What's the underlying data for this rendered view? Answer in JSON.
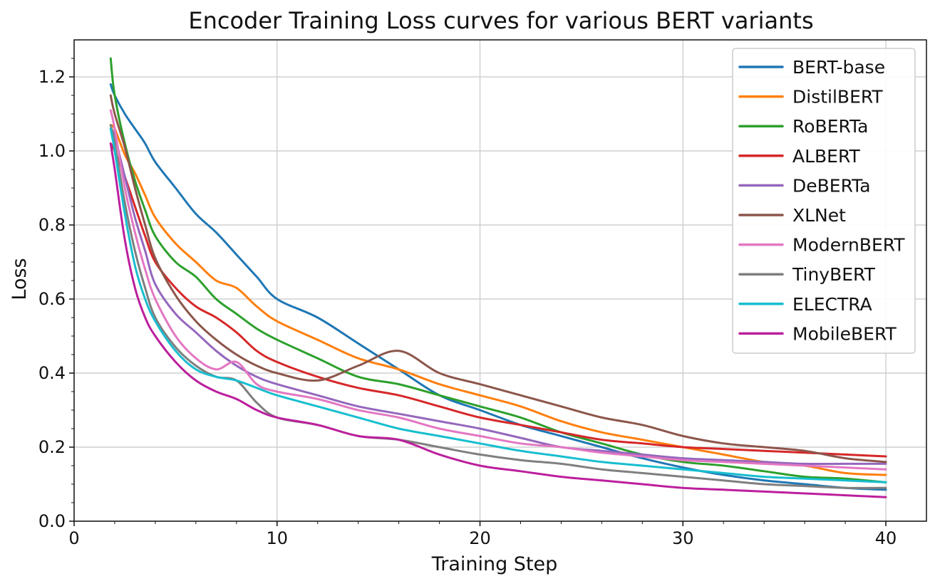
{
  "chart_data": {
    "type": "line",
    "title": "Encoder Training Loss curves for various BERT variants",
    "xlabel": "Training Step",
    "ylabel": "Loss",
    "xlim": [
      0,
      42
    ],
    "ylim": [
      0,
      1.3
    ],
    "xticks": [
      0,
      10,
      20,
      30,
      40
    ],
    "yticks": [
      0.0,
      0.2,
      0.4,
      0.6,
      0.8,
      1.0,
      1.2
    ],
    "xtick_labels": [
      "0",
      "10",
      "20",
      "30",
      "40"
    ],
    "ytick_labels": [
      "0.0",
      "0.2",
      "0.4",
      "0.6",
      "0.8",
      "1.0",
      "1.2"
    ],
    "grid": true,
    "legend_position": "top-right",
    "x": [
      1.8,
      2,
      2.5,
      3,
      3.5,
      4,
      5,
      6,
      7,
      8,
      9,
      10,
      12,
      14,
      16,
      18,
      20,
      22,
      24,
      26,
      28,
      30,
      32,
      34,
      36,
      38,
      40
    ],
    "series": [
      {
        "name": "BERT-base",
        "color": "#1f77b4",
        "values": [
          1.18,
          1.15,
          1.1,
          1.06,
          1.02,
          0.97,
          0.9,
          0.83,
          0.78,
          0.72,
          0.66,
          0.6,
          0.55,
          0.48,
          0.41,
          0.34,
          0.3,
          0.26,
          0.23,
          0.2,
          0.17,
          0.145,
          0.125,
          0.11,
          0.1,
          0.09,
          0.085
        ]
      },
      {
        "name": "DistilBERT",
        "color": "#ff7f0e",
        "values": [
          1.07,
          1.06,
          0.99,
          0.94,
          0.88,
          0.82,
          0.75,
          0.7,
          0.65,
          0.63,
          0.58,
          0.54,
          0.49,
          0.44,
          0.41,
          0.37,
          0.34,
          0.31,
          0.27,
          0.24,
          0.22,
          0.2,
          0.18,
          0.16,
          0.15,
          0.13,
          0.125
        ]
      },
      {
        "name": "RoBERTa",
        "color": "#2ca02c",
        "values": [
          1.25,
          1.15,
          1.02,
          0.92,
          0.84,
          0.77,
          0.7,
          0.66,
          0.6,
          0.56,
          0.52,
          0.49,
          0.44,
          0.39,
          0.37,
          0.34,
          0.31,
          0.28,
          0.24,
          0.21,
          0.18,
          0.16,
          0.15,
          0.135,
          0.12,
          0.115,
          0.105
        ]
      },
      {
        "name": "ALBERT",
        "color": "#d62728",
        "values": [
          1.02,
          1.0,
          0.93,
          0.85,
          0.77,
          0.7,
          0.63,
          0.58,
          0.55,
          0.51,
          0.46,
          0.43,
          0.39,
          0.36,
          0.34,
          0.31,
          0.28,
          0.26,
          0.24,
          0.22,
          0.21,
          0.2,
          0.195,
          0.19,
          0.185,
          0.18,
          0.175
        ]
      },
      {
        "name": "DeBERTa",
        "color": "#9467bd",
        "values": [
          1.06,
          1.04,
          0.93,
          0.82,
          0.73,
          0.64,
          0.56,
          0.51,
          0.46,
          0.42,
          0.39,
          0.37,
          0.34,
          0.31,
          0.29,
          0.27,
          0.25,
          0.225,
          0.2,
          0.19,
          0.18,
          0.17,
          0.165,
          0.16,
          0.155,
          0.155,
          0.155
        ]
      },
      {
        "name": "XLNet",
        "color": "#8c564b",
        "values": [
          1.15,
          1.1,
          1.01,
          0.9,
          0.8,
          0.71,
          0.61,
          0.54,
          0.49,
          0.45,
          0.42,
          0.4,
          0.38,
          0.42,
          0.46,
          0.4,
          0.37,
          0.34,
          0.31,
          0.28,
          0.26,
          0.23,
          0.21,
          0.2,
          0.19,
          0.17,
          0.16
        ]
      },
      {
        "name": "ModernBERT",
        "color": "#e377c2",
        "values": [
          1.11,
          1.06,
          0.9,
          0.78,
          0.68,
          0.6,
          0.5,
          0.44,
          0.41,
          0.43,
          0.37,
          0.35,
          0.33,
          0.3,
          0.28,
          0.25,
          0.23,
          0.21,
          0.2,
          0.185,
          0.175,
          0.165,
          0.16,
          0.155,
          0.15,
          0.145,
          0.14
        ]
      },
      {
        "name": "TinyBERT",
        "color": "#7f7f7f",
        "values": [
          1.07,
          1.02,
          0.86,
          0.73,
          0.63,
          0.55,
          0.47,
          0.42,
          0.39,
          0.38,
          0.32,
          0.28,
          0.26,
          0.23,
          0.22,
          0.2,
          0.18,
          0.165,
          0.155,
          0.14,
          0.13,
          0.12,
          0.11,
          0.1,
          0.095,
          0.09,
          0.09
        ]
      },
      {
        "name": "ELECTRA",
        "color": "#17becf",
        "values": [
          1.06,
          1.0,
          0.83,
          0.69,
          0.6,
          0.54,
          0.46,
          0.41,
          0.39,
          0.38,
          0.36,
          0.34,
          0.31,
          0.28,
          0.25,
          0.23,
          0.21,
          0.19,
          0.175,
          0.16,
          0.15,
          0.14,
          0.13,
          0.12,
          0.115,
          0.11,
          0.105
        ]
      },
      {
        "name": "MobileBERT",
        "color": "#bc1f9d",
        "values": [
          1.02,
          0.95,
          0.76,
          0.63,
          0.55,
          0.5,
          0.43,
          0.38,
          0.35,
          0.33,
          0.3,
          0.28,
          0.26,
          0.23,
          0.22,
          0.18,
          0.15,
          0.135,
          0.12,
          0.11,
          0.1,
          0.09,
          0.085,
          0.08,
          0.075,
          0.07,
          0.065
        ]
      }
    ]
  }
}
